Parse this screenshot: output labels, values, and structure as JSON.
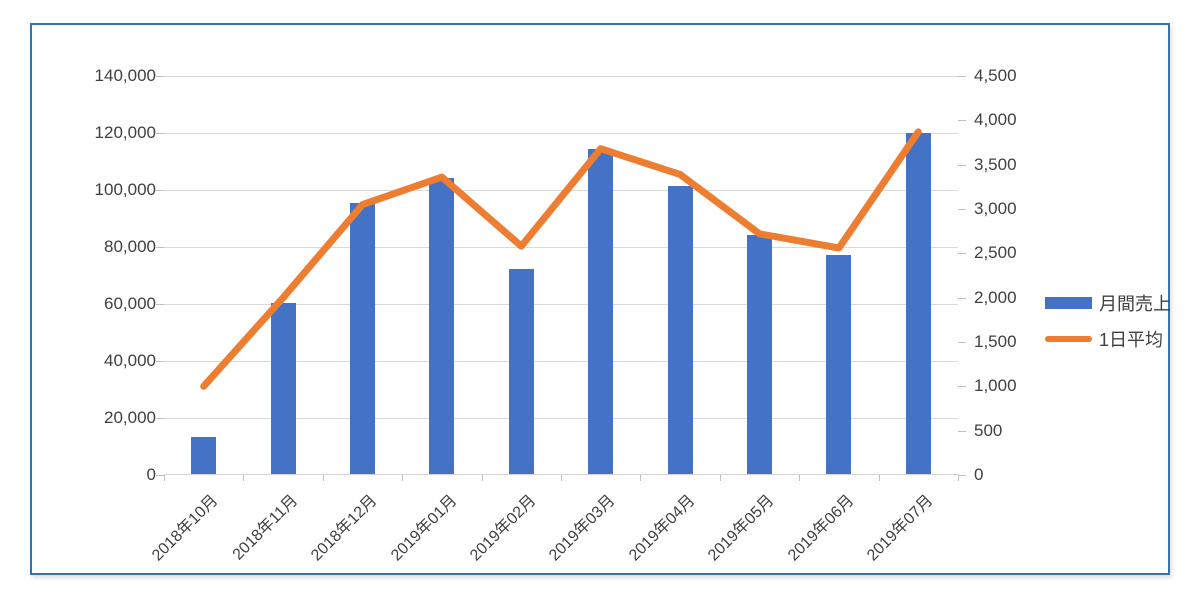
{
  "chart_data": {
    "type": "bar+line (dual axis combo)",
    "title": "",
    "categories": [
      "2018年10月",
      "2018年11月",
      "2018年12月",
      "2019年01月",
      "2019年02月",
      "2019年03月",
      "2019年04月",
      "2019年05月",
      "2019年06月",
      "2019年07月"
    ],
    "series": [
      {
        "name": "月間売上",
        "type": "bar",
        "axis": "left",
        "color": "#4472C4",
        "values": [
          13000,
          60000,
          95000,
          104000,
          72000,
          114000,
          101000,
          84000,
          77000,
          119500
        ]
      },
      {
        "name": "1日平均",
        "type": "line",
        "axis": "right",
        "color": "#ED7D31",
        "values": [
          1000,
          2000,
          3050,
          3360,
          2580,
          3680,
          3390,
          2720,
          2560,
          3870
        ]
      }
    ],
    "left_axis": {
      "min": 0,
      "max": 140000,
      "step": 20000,
      "tick_labels": [
        "140,000",
        "120,000",
        "100,000",
        "80,000",
        "60,000",
        "40,000",
        "20,000",
        "0"
      ]
    },
    "right_axis": {
      "min": 0,
      "max": 4500,
      "step": 500,
      "tick_labels": [
        "4,500",
        "4,000",
        "3,500",
        "3,000",
        "2,500",
        "2,000",
        "1,500",
        "1,000",
        "500",
        "0"
      ]
    },
    "grid": true,
    "legend_position": "right"
  },
  "legend": {
    "items": [
      {
        "label": "月間売上",
        "swatch": "bar",
        "color": "#4472C4"
      },
      {
        "label": "1日平均",
        "swatch": "line",
        "color": "#ED7D31"
      }
    ]
  },
  "colors": {
    "frame_border": "#2E75B6",
    "bar": "#4472C4",
    "line": "#ED7D31",
    "gridline": "#D9D9D9",
    "axis_text": "#404040"
  }
}
